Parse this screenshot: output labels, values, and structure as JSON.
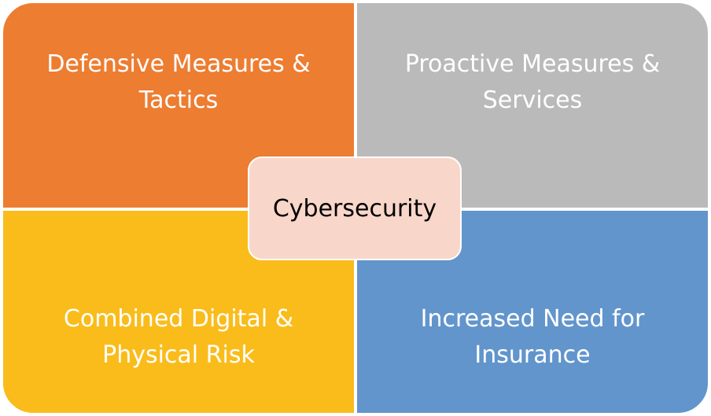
{
  "diagram": {
    "quadrants": [
      {
        "label": "Defensive Measures & Tactics",
        "color": "#ED7D31"
      },
      {
        "label": "Proactive Measures & Services",
        "color": "#BABABA"
      },
      {
        "label": "Combined Digital & Physical Risk",
        "color": "#F9BC1B"
      },
      {
        "label": "Increased Need for Insurance",
        "color": "#6295CC"
      }
    ],
    "center": {
      "label": "Cybersecurity",
      "color": "#F9D6CA"
    }
  }
}
